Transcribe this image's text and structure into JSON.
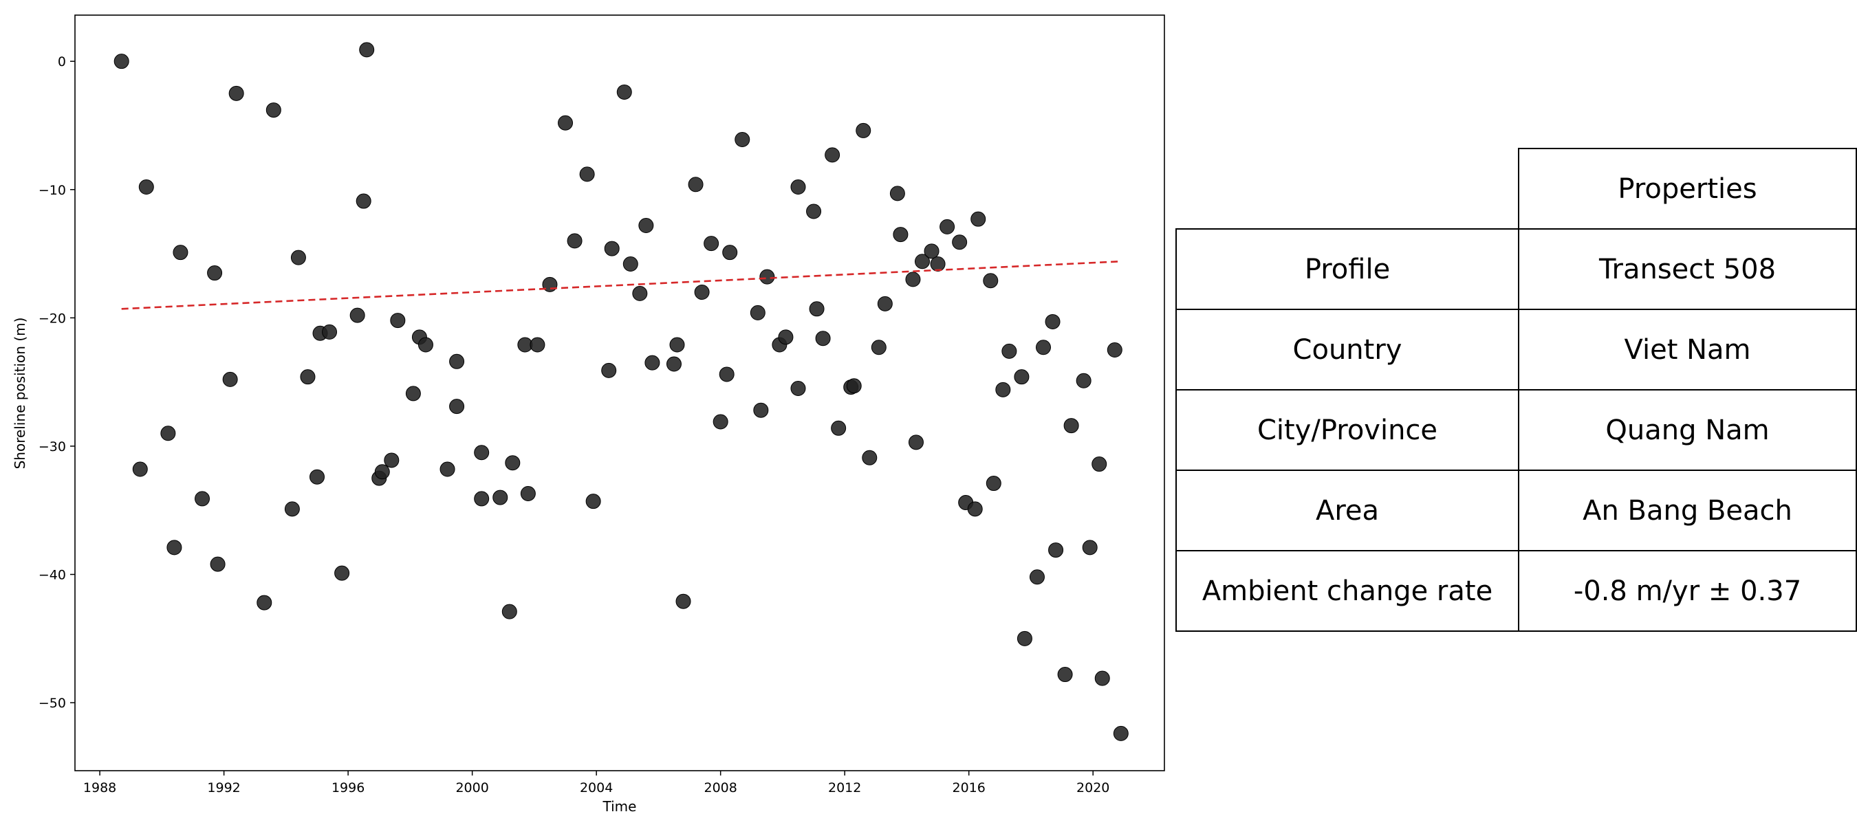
{
  "chart_data": {
    "type": "scatter",
    "title": "",
    "xlabel": "Time",
    "ylabel": "Shoreline position (m)",
    "xlim": [
      1987.2,
      2022.3
    ],
    "ylim": [
      -55.3,
      3.6
    ],
    "x_ticks": [
      1988,
      1992,
      1996,
      2000,
      2004,
      2008,
      2012,
      2016,
      2020
    ],
    "y_ticks": [
      0,
      -10,
      -20,
      -30,
      -40,
      -50
    ],
    "grid": false,
    "point_color": "#222222",
    "trend_color": "#d62728",
    "trend": {
      "x": [
        1988.7,
        2020.9
      ],
      "y": [
        -19.3,
        -15.6
      ]
    },
    "points": [
      {
        "x": 1988.7,
        "y": 0.0
      },
      {
        "x": 1989.3,
        "y": -31.8
      },
      {
        "x": 1989.5,
        "y": -9.8
      },
      {
        "x": 1990.2,
        "y": -29.0
      },
      {
        "x": 1990.4,
        "y": -37.9
      },
      {
        "x": 1990.6,
        "y": -14.9
      },
      {
        "x": 1991.3,
        "y": -34.1
      },
      {
        "x": 1991.7,
        "y": -16.5
      },
      {
        "x": 1991.8,
        "y": -39.2
      },
      {
        "x": 1992.2,
        "y": -24.8
      },
      {
        "x": 1992.4,
        "y": -2.5
      },
      {
        "x": 1993.3,
        "y": -42.2
      },
      {
        "x": 1993.6,
        "y": -3.8
      },
      {
        "x": 1994.2,
        "y": -34.9
      },
      {
        "x": 1994.4,
        "y": -15.3
      },
      {
        "x": 1994.7,
        "y": -24.6
      },
      {
        "x": 1995.0,
        "y": -32.4
      },
      {
        "x": 1995.1,
        "y": -21.2
      },
      {
        "x": 1995.4,
        "y": -21.1
      },
      {
        "x": 1995.8,
        "y": -39.9
      },
      {
        "x": 1996.3,
        "y": -19.8
      },
      {
        "x": 1996.5,
        "y": -10.9
      },
      {
        "x": 1996.6,
        "y": 0.9
      },
      {
        "x": 1997.0,
        "y": -32.5
      },
      {
        "x": 1997.1,
        "y": -32.0
      },
      {
        "x": 1997.4,
        "y": -31.1
      },
      {
        "x": 1997.6,
        "y": -20.2
      },
      {
        "x": 1998.1,
        "y": -25.9
      },
      {
        "x": 1998.3,
        "y": -21.5
      },
      {
        "x": 1998.5,
        "y": -22.1
      },
      {
        "x": 1999.2,
        "y": -31.8
      },
      {
        "x": 1999.5,
        "y": -26.9
      },
      {
        "x": 1999.5,
        "y": -23.4
      },
      {
        "x": 2000.3,
        "y": -34.1
      },
      {
        "x": 2000.3,
        "y": -30.5
      },
      {
        "x": 2000.9,
        "y": -34.0
      },
      {
        "x": 2001.2,
        "y": -42.9
      },
      {
        "x": 2001.3,
        "y": -31.3
      },
      {
        "x": 2001.7,
        "y": -22.1
      },
      {
        "x": 2001.8,
        "y": -33.7
      },
      {
        "x": 2002.1,
        "y": -22.1
      },
      {
        "x": 2002.5,
        "y": -17.4
      },
      {
        "x": 2003.0,
        "y": -4.8
      },
      {
        "x": 2003.3,
        "y": -14.0
      },
      {
        "x": 2003.7,
        "y": -8.8
      },
      {
        "x": 2003.9,
        "y": -34.3
      },
      {
        "x": 2004.4,
        "y": -24.1
      },
      {
        "x": 2004.5,
        "y": -14.6
      },
      {
        "x": 2004.9,
        "y": -2.4
      },
      {
        "x": 2005.1,
        "y": -15.8
      },
      {
        "x": 2005.4,
        "y": -18.1
      },
      {
        "x": 2005.6,
        "y": -12.8
      },
      {
        "x": 2005.8,
        "y": -23.5
      },
      {
        "x": 2006.5,
        "y": -23.6
      },
      {
        "x": 2006.6,
        "y": -22.1
      },
      {
        "x": 2006.8,
        "y": -42.1
      },
      {
        "x": 2007.2,
        "y": -9.6
      },
      {
        "x": 2007.4,
        "y": -18.0
      },
      {
        "x": 2007.7,
        "y": -14.2
      },
      {
        "x": 2008.0,
        "y": -28.1
      },
      {
        "x": 2008.2,
        "y": -24.4
      },
      {
        "x": 2008.3,
        "y": -14.9
      },
      {
        "x": 2008.7,
        "y": -6.1
      },
      {
        "x": 2009.2,
        "y": -19.6
      },
      {
        "x": 2009.3,
        "y": -27.2
      },
      {
        "x": 2009.5,
        "y": -16.8
      },
      {
        "x": 2009.9,
        "y": -22.1
      },
      {
        "x": 2010.1,
        "y": -21.5
      },
      {
        "x": 2010.5,
        "y": -25.5
      },
      {
        "x": 2010.5,
        "y": -9.8
      },
      {
        "x": 2011.0,
        "y": -11.7
      },
      {
        "x": 2011.1,
        "y": -19.3
      },
      {
        "x": 2011.3,
        "y": -21.6
      },
      {
        "x": 2011.6,
        "y": -7.3
      },
      {
        "x": 2011.8,
        "y": -28.6
      },
      {
        "x": 2012.2,
        "y": -25.4
      },
      {
        "x": 2012.3,
        "y": -25.3
      },
      {
        "x": 2012.6,
        "y": -5.4
      },
      {
        "x": 2012.8,
        "y": -30.9
      },
      {
        "x": 2013.1,
        "y": -22.3
      },
      {
        "x": 2013.3,
        "y": -18.9
      },
      {
        "x": 2013.7,
        "y": -10.3
      },
      {
        "x": 2013.8,
        "y": -13.5
      },
      {
        "x": 2014.2,
        "y": -17.0
      },
      {
        "x": 2014.3,
        "y": -29.7
      },
      {
        "x": 2014.5,
        "y": -15.6
      },
      {
        "x": 2014.8,
        "y": -14.8
      },
      {
        "x": 2015.0,
        "y": -15.8
      },
      {
        "x": 2015.3,
        "y": -12.9
      },
      {
        "x": 2015.7,
        "y": -14.1
      },
      {
        "x": 2015.9,
        "y": -34.4
      },
      {
        "x": 2016.2,
        "y": -34.9
      },
      {
        "x": 2016.3,
        "y": -12.3
      },
      {
        "x": 2016.7,
        "y": -17.1
      },
      {
        "x": 2016.8,
        "y": -32.9
      },
      {
        "x": 2017.1,
        "y": -25.6
      },
      {
        "x": 2017.3,
        "y": -22.6
      },
      {
        "x": 2017.7,
        "y": -24.6
      },
      {
        "x": 2017.8,
        "y": -45.0
      },
      {
        "x": 2018.2,
        "y": -40.2
      },
      {
        "x": 2018.4,
        "y": -22.3
      },
      {
        "x": 2018.7,
        "y": -20.3
      },
      {
        "x": 2018.8,
        "y": -38.1
      },
      {
        "x": 2019.1,
        "y": -47.8
      },
      {
        "x": 2019.3,
        "y": -28.4
      },
      {
        "x": 2019.7,
        "y": -24.9
      },
      {
        "x": 2019.9,
        "y": -37.9
      },
      {
        "x": 2020.2,
        "y": -31.4
      },
      {
        "x": 2020.3,
        "y": -48.1
      },
      {
        "x": 2020.7,
        "y": -22.5
      },
      {
        "x": 2020.9,
        "y": -52.4
      }
    ]
  },
  "table": {
    "header": "Properties",
    "rows": [
      {
        "label": "Profile",
        "value": "Transect 508"
      },
      {
        "label": "Country",
        "value": "Viet Nam"
      },
      {
        "label": "City/Province",
        "value": "Quang Nam"
      },
      {
        "label": "Area",
        "value": "An Bang Beach"
      },
      {
        "label": "Ambient change rate",
        "value": "-0.8 m/yr ± 0.37"
      }
    ]
  }
}
